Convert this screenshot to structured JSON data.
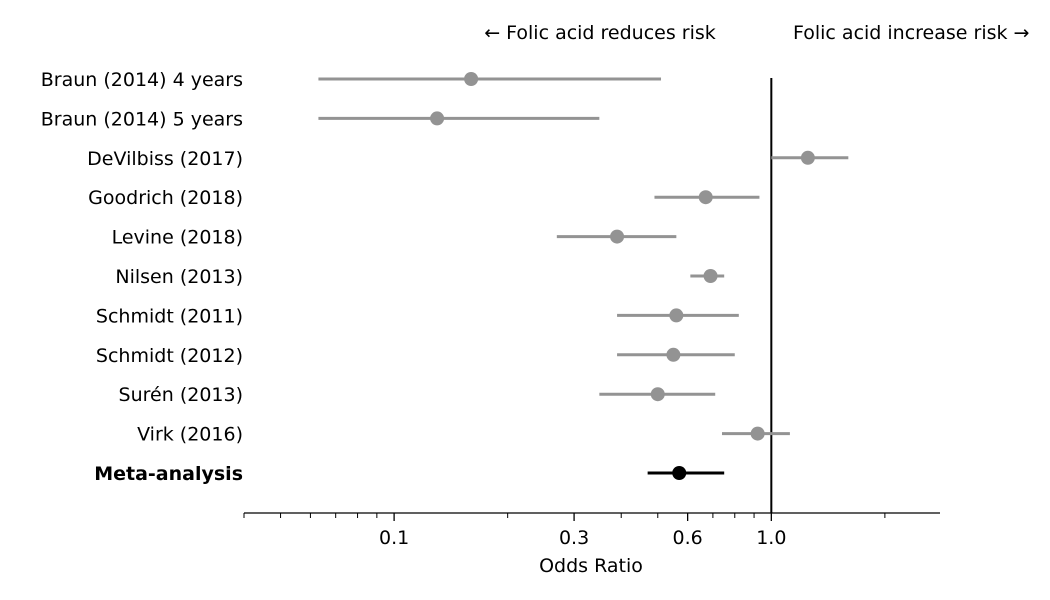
{
  "chart_data": {
    "type": "forest",
    "scale": "log",
    "xlabel": "Odds Ratio",
    "xlim": [
      0.04,
      2.8
    ],
    "xticks": [
      {
        "value": 0.1,
        "label": "0.1"
      },
      {
        "value": 0.3,
        "label": "0.3"
      },
      {
        "value": 0.6,
        "label": "0.6"
      },
      {
        "value": 1.0,
        "label": "1.0"
      }
    ],
    "minor_ticks": [
      0.04,
      0.05,
      0.06,
      0.07,
      0.08,
      0.09,
      0.2,
      0.4,
      0.5,
      0.7,
      0.8,
      0.9,
      2.0
    ],
    "reference_line": 1.0,
    "annotations": {
      "left": "← Folic acid reduces risk",
      "right": "Folic acid increase risk →"
    },
    "studies": [
      {
        "label": "Braun (2014) 4 years",
        "or": 0.16,
        "lo": 0.063,
        "hi": 0.51
      },
      {
        "label": "Braun (2014) 5 years",
        "or": 0.13,
        "lo": 0.063,
        "hi": 0.35
      },
      {
        "label": "DeVilbiss (2017)",
        "or": 1.25,
        "lo": 1.0,
        "hi": 1.6
      },
      {
        "label": "Goodrich (2018)",
        "or": 0.67,
        "lo": 0.49,
        "hi": 0.93
      },
      {
        "label": "Levine (2018)",
        "or": 0.39,
        "lo": 0.27,
        "hi": 0.56
      },
      {
        "label": "Nilsen (2013)",
        "or": 0.69,
        "lo": 0.61,
        "hi": 0.75
      },
      {
        "label": "Schmidt (2011)",
        "or": 0.56,
        "lo": 0.39,
        "hi": 0.82
      },
      {
        "label": "Schmidt (2012)",
        "or": 0.55,
        "lo": 0.39,
        "hi": 0.8
      },
      {
        "label": "Surén (2013)",
        "or": 0.5,
        "lo": 0.35,
        "hi": 0.71
      },
      {
        "label": "Virk (2016)",
        "or": 0.92,
        "lo": 0.74,
        "hi": 1.12
      }
    ],
    "summary": {
      "label": "Meta-analysis",
      "or": 0.57,
      "lo": 0.47,
      "hi": 0.75
    },
    "colors": {
      "study": "#939393",
      "summary": "#000000",
      "axis": "#000000"
    }
  }
}
